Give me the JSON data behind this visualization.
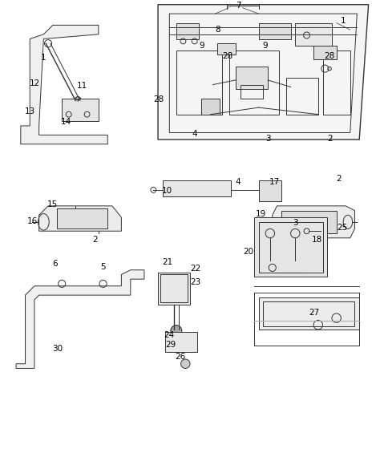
{
  "background_color": "#ffffff",
  "line_color": "#333333",
  "figsize": [
    4.74,
    5.75
  ],
  "dpi": 100
}
